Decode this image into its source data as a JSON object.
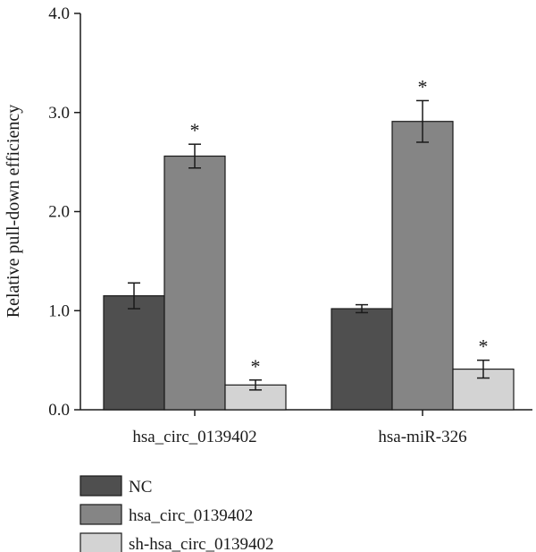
{
  "chart_data": {
    "type": "bar",
    "ylabel": "Relative pull-down efficiency",
    "xlabel": "",
    "ylim": [
      0,
      4
    ],
    "yticks": [
      "0.0",
      "1.0",
      "2.0",
      "3.0",
      "4.0"
    ],
    "categories": [
      "hsa_circ_0139402",
      "hsa-miR-326"
    ],
    "series": [
      {
        "name": "NC",
        "color": "#4f4f4f",
        "values": [
          1.15,
          1.02
        ],
        "errors": [
          0.13,
          0.04
        ],
        "sig": [
          false,
          false
        ]
      },
      {
        "name": "hsa_circ_0139402",
        "color": "#858585",
        "values": [
          2.56,
          2.91
        ],
        "errors": [
          0.12,
          0.21
        ],
        "sig": [
          true,
          true
        ]
      },
      {
        "name": "sh-hsa_circ_0139402",
        "color": "#d3d3d3",
        "values": [
          0.25,
          0.41
        ],
        "errors": [
          0.05,
          0.09
        ],
        "sig": [
          true,
          true
        ]
      }
    ],
    "significance_marker": "*",
    "legend_position": "bottom-left"
  }
}
